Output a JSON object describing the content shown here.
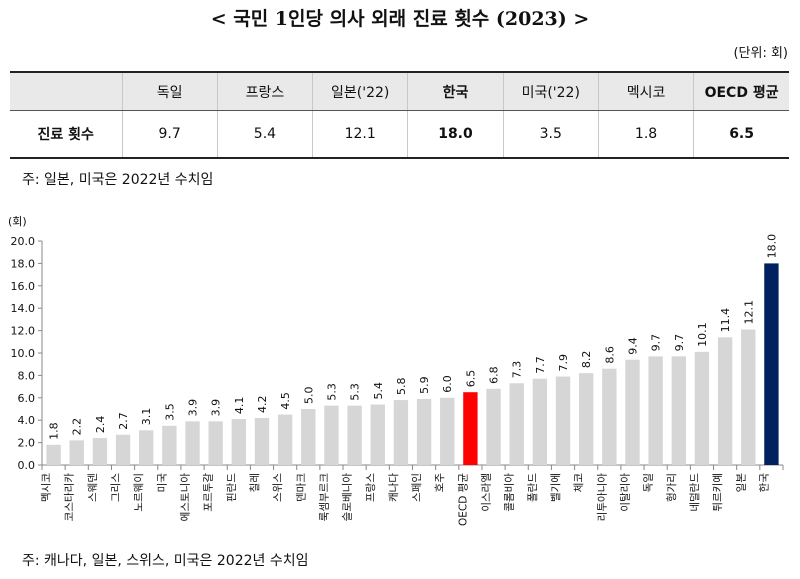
{
  "title": "< 국민 1인당 의사 외래 진료 횟수 (2023) >",
  "unit": "(단위: 회)",
  "table": {
    "headers": [
      "",
      "독일",
      "프랑스",
      "일본('22)",
      "한국",
      "미국('22)",
      "멕시코",
      "OECD 평균"
    ],
    "row": [
      "진료 횟수",
      "9.7",
      "5.4",
      "12.1",
      "18.0",
      "3.5",
      "1.8",
      "6.5"
    ],
    "bold_columns": [
      4,
      7
    ]
  },
  "note_top": "주: 일본, 미국은 2022년 수치임",
  "note_bottom": "주: 캐나다, 일본, 스위스, 미국은 2022년 수치임",
  "colors": {
    "bar": "#d6d6d6",
    "oecd": "#ff0000",
    "korea": "#002060"
  },
  "chart_data": {
    "type": "bar",
    "ylabel": "(회)",
    "ylim": [
      0,
      20
    ],
    "yticks": [
      "0.0",
      "2.0",
      "4.0",
      "6.0",
      "8.0",
      "10.0",
      "12.0",
      "14.0",
      "16.0",
      "18.0",
      "20.0"
    ],
    "categories": [
      "멕시코",
      "코스타리카",
      "스웨덴",
      "그리스",
      "노르웨이",
      "미국",
      "에스토니아",
      "포르투갈",
      "핀란드",
      "칠레",
      "스위스",
      "덴마크",
      "룩셈부르크",
      "슬로베니아",
      "프랑스",
      "캐나다",
      "스페인",
      "호주",
      "OECD 평균",
      "이스라엘",
      "콜롬비아",
      "폴란드",
      "벨기에",
      "체코",
      "리투아니아",
      "이탈리아",
      "독일",
      "헝가리",
      "네덜란드",
      "튀르키예",
      "일본",
      "한국"
    ],
    "values": [
      1.8,
      2.2,
      2.4,
      2.7,
      3.1,
      3.5,
      3.9,
      3.9,
      4.1,
      4.2,
      4.5,
      5.0,
      5.3,
      5.3,
      5.4,
      5.8,
      5.9,
      6.0,
      6.5,
      6.8,
      7.3,
      7.7,
      7.9,
      8.2,
      8.6,
      9.4,
      9.7,
      9.7,
      10.1,
      11.4,
      12.1,
      18.0
    ],
    "labels": [
      "1.8",
      "2.2",
      "2.4",
      "2.7",
      "3.1",
      "3.5",
      "3.9",
      "3.9",
      "4.1",
      "4.2",
      "4.5",
      "5.0",
      "5.3",
      "5.3",
      "5.4",
      "5.8",
      "5.9",
      "6.0",
      "6.5",
      "6.8",
      "7.3",
      "7.7",
      "7.9",
      "8.2",
      "8.6",
      "9.4",
      "9.7",
      "9.7",
      "10.1",
      "11.4",
      "12.1",
      "18.0"
    ],
    "highlight": {
      "OECD 평균": "oecd",
      "한국": "korea"
    }
  }
}
